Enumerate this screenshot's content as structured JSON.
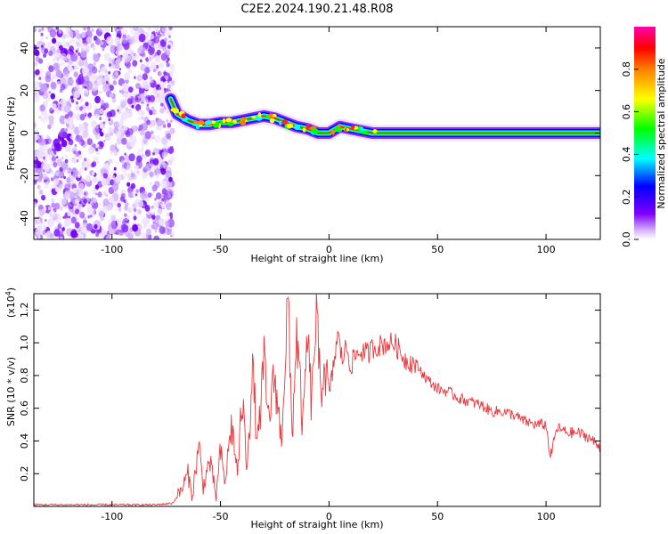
{
  "title": "C2E2.2024.190.21.48.R08",
  "chart_data": [
    {
      "type": "heatmap",
      "title": "C2E2.2024.190.21.48.R08",
      "xlabel": "Height of straight line (km)",
      "ylabel": "Frequency (Hz)",
      "xlim": [
        -136,
        125
      ],
      "ylim": [
        -50,
        50
      ],
      "xticks": [
        -100,
        -50,
        0,
        50,
        100
      ],
      "yticks": [
        -40,
        -20,
        0,
        20,
        40
      ],
      "noise_region_x": [
        -136,
        -72
      ],
      "ridge_track": {
        "x": [
          -73,
          -70,
          -65,
          -60,
          -55,
          -50,
          -45,
          -40,
          -35,
          -30,
          -25,
          -20,
          -15,
          -10,
          -5,
          0,
          5,
          10,
          15,
          20,
          30,
          50,
          70,
          100,
          125
        ],
        "y": [
          16,
          9,
          6,
          4,
          4,
          5,
          5,
          6,
          7,
          8,
          7,
          5,
          3,
          2,
          0,
          0,
          3,
          2,
          1,
          0,
          0,
          0,
          0,
          0,
          0
        ]
      },
      "colorbar": {
        "label": "Normalized spectral amplitude",
        "range": [
          0,
          1
        ],
        "ticks": [
          "0.0",
          "0.2",
          "0.4",
          "0.6",
          "0.8"
        ],
        "colors": [
          "#ffffff",
          "#7f00ff",
          "#0000ff",
          "#00ffff",
          "#00ff00",
          "#ffff00",
          "#ff7f00",
          "#ff0000",
          "#ff00aa"
        ]
      }
    },
    {
      "type": "line",
      "xlabel": "Height of straight line (km)",
      "ylabel": "SNR (10 * v/v)",
      "yscale_label": "(x10",
      "yscale_exp": "4",
      "yscale_close": ")",
      "xlim": [
        -136,
        125
      ],
      "ylim": [
        0,
        1.3
      ],
      "xticks": [
        -100,
        -50,
        0,
        50,
        100
      ],
      "yticks": [
        "0.2",
        "0.4",
        "0.6",
        "0.8",
        "1.0",
        "1.2"
      ],
      "color": "#e8383d",
      "x": [
        -136,
        -120,
        -100,
        -90,
        -80,
        -72,
        -68,
        -65,
        -63,
        -60,
        -58,
        -55,
        -52,
        -50,
        -48,
        -45,
        -42,
        -40,
        -38,
        -35,
        -33,
        -30,
        -28,
        -25,
        -22,
        -20,
        -19,
        -17,
        -15,
        -12,
        -10,
        -8,
        -6,
        -4,
        -2,
        0,
        2,
        4,
        6,
        8,
        10,
        12,
        15,
        18,
        20,
        25,
        30,
        35,
        40,
        45,
        50,
        55,
        60,
        65,
        70,
        75,
        80,
        85,
        90,
        95,
        100,
        102,
        105,
        110,
        115,
        120,
        125
      ],
      "y": [
        0.01,
        0.01,
        0.01,
        0.01,
        0.01,
        0.02,
        0.1,
        0.2,
        0.06,
        0.38,
        0.12,
        0.28,
        0.06,
        0.34,
        0.14,
        0.5,
        0.2,
        0.68,
        0.26,
        0.82,
        0.36,
        0.88,
        0.52,
        0.8,
        0.4,
        0.95,
        1.28,
        0.42,
        1.08,
        0.46,
        1.05,
        0.6,
        1.2,
        0.7,
        0.88,
        0.66,
        0.85,
        1.05,
        0.9,
        0.98,
        0.86,
        0.92,
        0.95,
        0.93,
        0.97,
        0.99,
        1.0,
        0.9,
        0.87,
        0.78,
        0.72,
        0.7,
        0.66,
        0.64,
        0.62,
        0.58,
        0.58,
        0.56,
        0.52,
        0.5,
        0.5,
        0.3,
        0.48,
        0.45,
        0.45,
        0.42,
        0.36
      ]
    }
  ]
}
